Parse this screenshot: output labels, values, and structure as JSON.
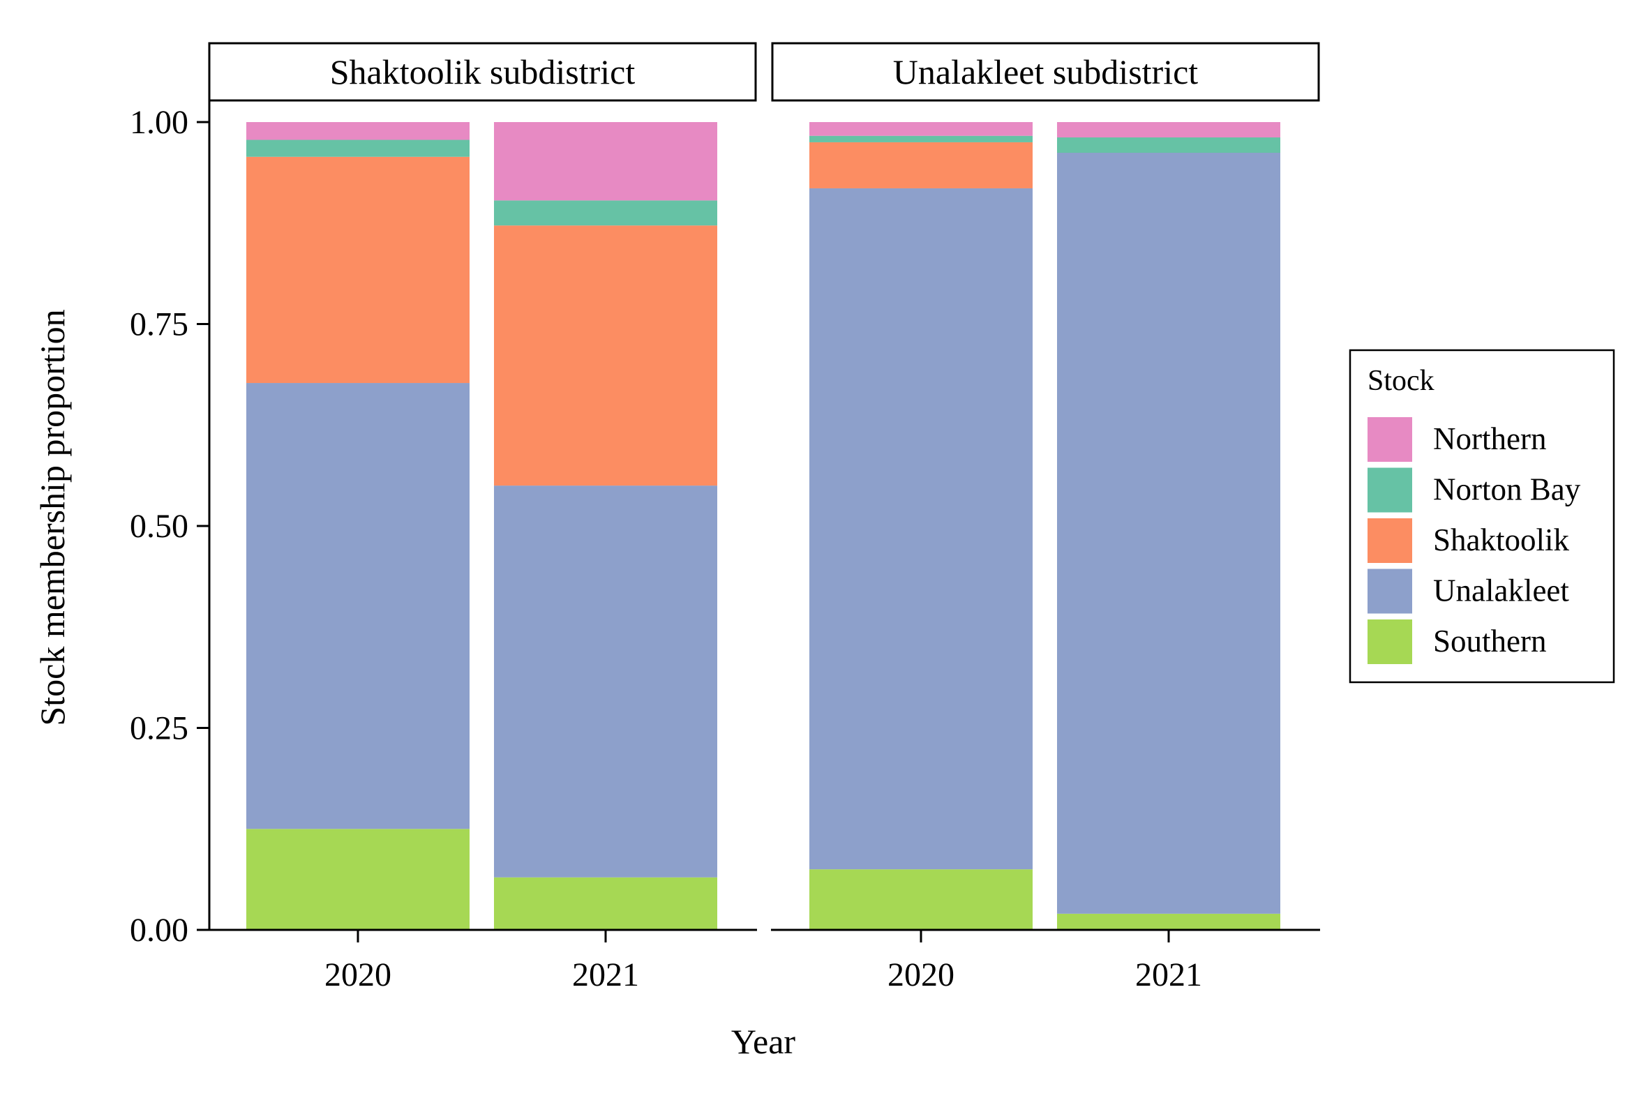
{
  "chart_data": {
    "type": "bar",
    "stacked": true,
    "xlabel": "Year",
    "ylabel": "Stock membership proportion",
    "ylim": [
      0,
      1
    ],
    "y_ticks": [
      "0.00",
      "0.25",
      "0.50",
      "0.75",
      "1.00"
    ],
    "y_tick_values": [
      0,
      0.25,
      0.5,
      0.75,
      1.0
    ],
    "grid": false,
    "legend": {
      "title": "Stock",
      "position": "right"
    },
    "categories": [
      "2020",
      "2021"
    ],
    "stack_order_bottom_to_top": [
      "Southern",
      "Unalakleet",
      "Shaktoolik",
      "Norton Bay",
      "Northern"
    ],
    "series": [
      {
        "name": "Northern",
        "color": "#E78AC3"
      },
      {
        "name": "Norton Bay",
        "color": "#66C2A5"
      },
      {
        "name": "Shaktoolik",
        "color": "#FC8D62"
      },
      {
        "name": "Unalakleet",
        "color": "#8DA0CB"
      },
      {
        "name": "Southern",
        "color": "#A6D854"
      }
    ],
    "panels": [
      {
        "title": "Shaktoolik subdistrict",
        "bars": [
          {
            "category": "2020",
            "Southern": 0.125,
            "Unalakleet": 0.552,
            "Shaktoolik": 0.28,
            "Norton Bay": 0.021,
            "Northern": 0.022
          },
          {
            "category": "2021",
            "Southern": 0.065,
            "Unalakleet": 0.485,
            "Shaktoolik": 0.322,
            "Norton Bay": 0.031,
            "Northern": 0.097
          }
        ]
      },
      {
        "title": "Unalakleet subdistrict",
        "bars": [
          {
            "category": "2020",
            "Southern": 0.075,
            "Unalakleet": 0.843,
            "Shaktoolik": 0.057,
            "Norton Bay": 0.008,
            "Northern": 0.017
          },
          {
            "category": "2021",
            "Southern": 0.02,
            "Unalakleet": 0.942,
            "Shaktoolik": 0.0,
            "Norton Bay": 0.019,
            "Northern": 0.019
          }
        ]
      }
    ]
  }
}
